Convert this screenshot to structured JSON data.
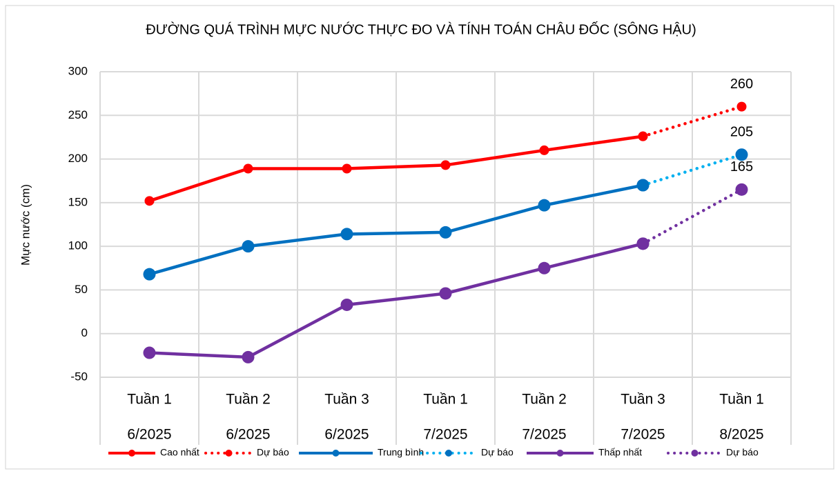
{
  "chart_data": {
    "type": "line",
    "title": "ĐƯỜNG QUÁ TRÌNH MỰC NƯỚC THỰC ĐO VÀ TÍNH TOÁN CHÂU ĐỐC (SÔNG HẬU)",
    "y_label": "Mực nước (cm)",
    "categories": [
      [
        "Tuần 1",
        "6/2025"
      ],
      [
        "Tuần 2",
        "6/2025"
      ],
      [
        "Tuần 3",
        "6/2025"
      ],
      [
        "Tuần 1",
        "7/2025"
      ],
      [
        "Tuần 2",
        "7/2025"
      ],
      [
        "Tuần 3",
        "7/2025"
      ],
      [
        "Tuần 1",
        "8/2025"
      ]
    ],
    "series": [
      {
        "name": "Cao nhất",
        "color": "#ff0000",
        "style": "solid",
        "values": [
          152,
          189,
          189,
          193,
          210,
          226,
          null
        ]
      },
      {
        "name": "Dự báo",
        "color": "#ff0000",
        "style": "dotted",
        "show_last_label": true,
        "values": [
          null,
          null,
          null,
          null,
          null,
          226,
          260
        ]
      },
      {
        "name": "Trung bình",
        "color": "#0070c0",
        "style": "solid",
        "values": [
          68,
          100,
          114,
          116,
          147,
          170,
          null
        ]
      },
      {
        "name": "Dự báo",
        "color": "#00b0f0",
        "marker_color": "#0070c0",
        "style": "dotted",
        "show_last_label": true,
        "values": [
          null,
          null,
          null,
          null,
          null,
          170,
          205
        ]
      },
      {
        "name": "Thấp nhất",
        "color": "#7030a0",
        "style": "solid",
        "values": [
          -22,
          -27,
          33,
          46,
          75,
          103,
          null
        ]
      },
      {
        "name": "Dự báo",
        "color": "#7030a0",
        "style": "dotted",
        "show_last_label": true,
        "values": [
          null,
          null,
          null,
          null,
          null,
          103,
          165
        ]
      }
    ],
    "ylim": [
      -50,
      300
    ],
    "yticks": [
      -50,
      0,
      50,
      100,
      150,
      200,
      250,
      300
    ],
    "grid": true,
    "legend": "bottom"
  }
}
